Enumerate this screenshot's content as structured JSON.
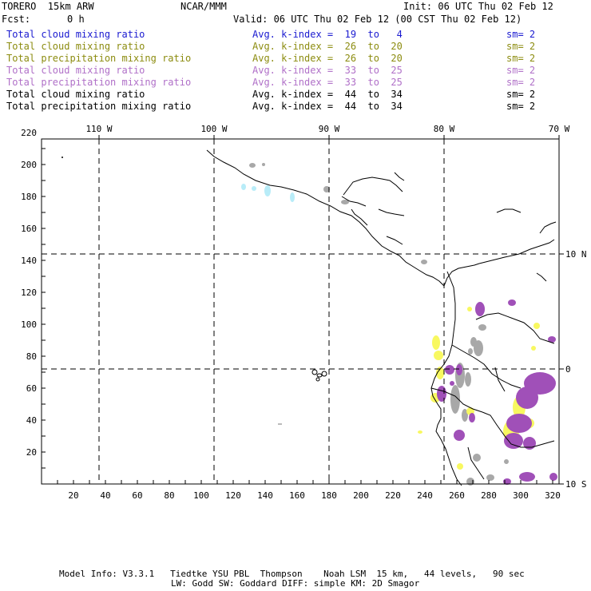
{
  "header": {
    "model": "TORERO  15km ARW",
    "center": "NCAR/MMM",
    "init": "Init: 06 UTC Thu 02 Feb 12",
    "fcst_label": "Fcst:",
    "fcst_value": "0 h",
    "valid": "Valid: 06 UTC Thu 02 Feb 12 (00 CST Thu 02 Feb 12)"
  },
  "legend": [
    {
      "field": "Total cloud mixing ratio",
      "kindex": "Avg. k-index =  19  to   4",
      "sm": "sm= 2",
      "color": "#1a1ad0"
    },
    {
      "field": "Total cloud mixing ratio",
      "kindex": "Avg. k-index =  26  to  20",
      "sm": "sm= 2",
      "color": "#8c8c10"
    },
    {
      "field": "Total precipitation mixing ratio",
      "kindex": "Avg. k-index =  26  to  20",
      "sm": "sm= 2",
      "color": "#8c8c10"
    },
    {
      "field": "Total cloud mixing ratio",
      "kindex": "Avg. k-index =  33  to  25",
      "sm": "sm= 2",
      "color": "#b070c8"
    },
    {
      "field": "Total precipitation mixing ratio",
      "kindex": "Avg. k-index =  33  to  25",
      "sm": "sm= 2",
      "color": "#b070c8"
    },
    {
      "field": "Total cloud mixing ratio",
      "kindex": "Avg. k-index =  44  to  34",
      "sm": "sm= 2",
      "color": "#000000"
    },
    {
      "field": "Total precipitation mixing ratio",
      "kindex": "Avg. k-index =  44  to  34",
      "sm": "sm= 2",
      "color": "#000000"
    }
  ],
  "axes": {
    "lon_labels": [
      "110 W",
      "100 W",
      "90 W",
      "80 W",
      "70 W"
    ],
    "lat_labels": [
      "10 N",
      "0",
      "10 S"
    ],
    "x_ticks": [
      "20",
      "40",
      "60",
      "80",
      "100",
      "120",
      "140",
      "160",
      "180",
      "200",
      "220",
      "240",
      "260",
      "280",
      "300",
      "320"
    ],
    "y_ticks": [
      "220",
      "200",
      "180",
      "160",
      "140",
      "120",
      "100",
      "80",
      "60",
      "40",
      "20"
    ]
  },
  "footer": {
    "line1": "Model Info: V3.3.1   Tiedtke YSU PBL  Thompson    Noah LSM  15 km,   44 levels,   90 sec",
    "line2": "LW: Godd SW: Goddard DIFF: simple KM: 2D Smagor"
  },
  "colors": {
    "light_blue": "#b8ecf8",
    "yellow": "#f8f860",
    "light_purple": "#c898d8",
    "purple": "#a050b8",
    "gray": "#a8a8a8"
  }
}
